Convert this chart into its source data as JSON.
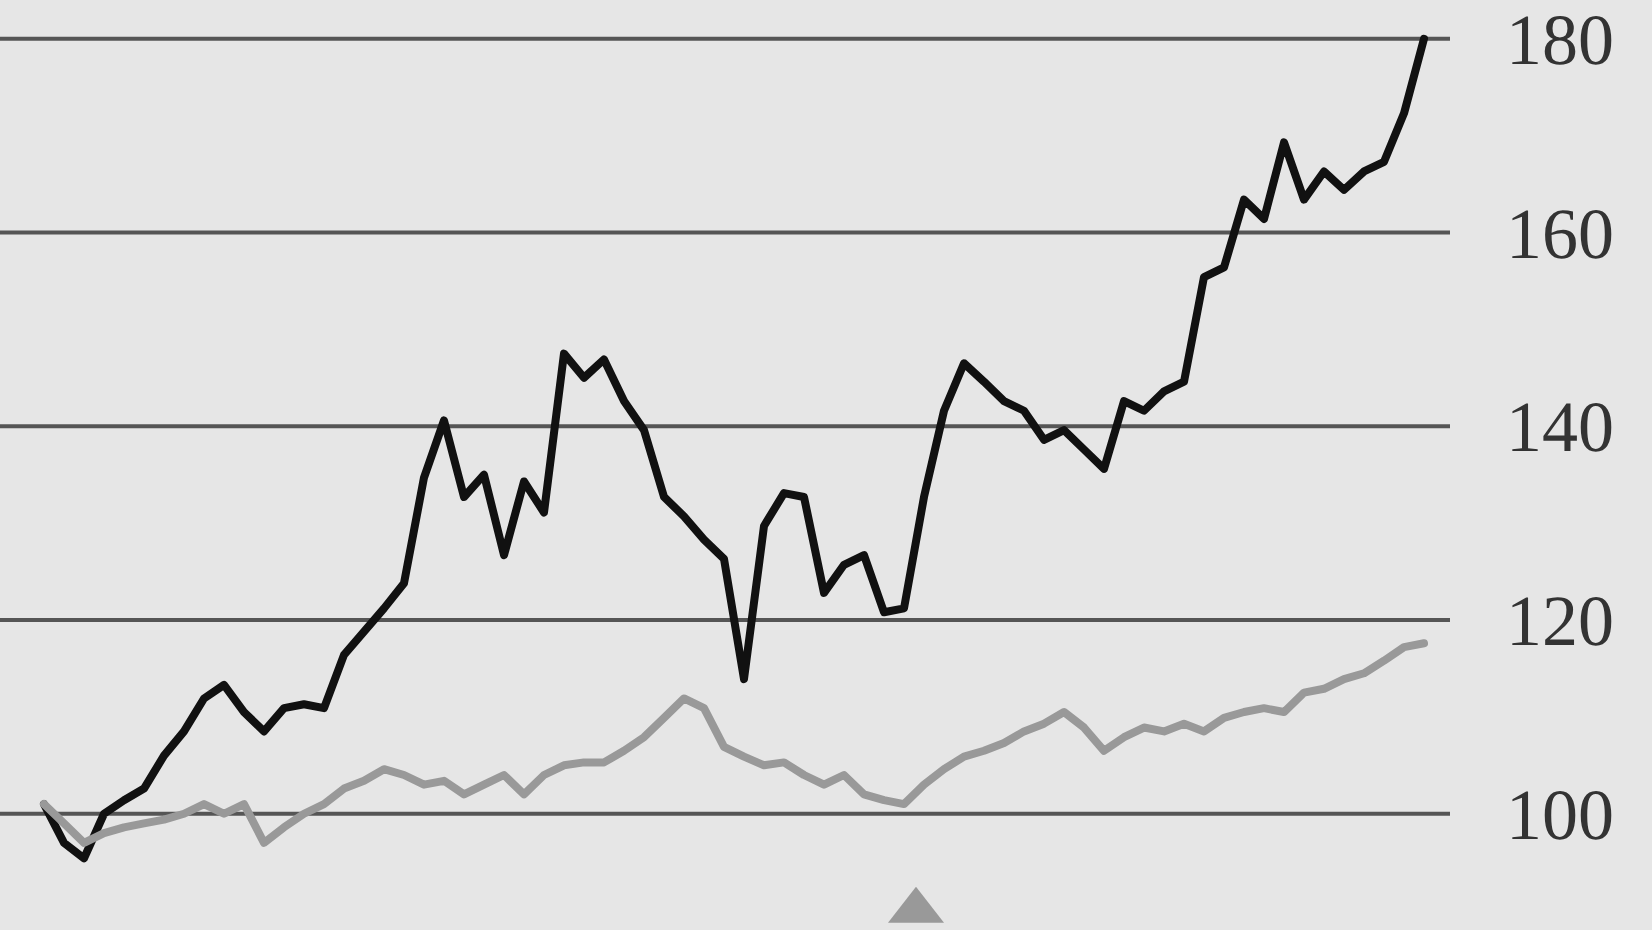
{
  "chart_data": {
    "type": "line",
    "categories": [
      null,
      null,
      null,
      null,
      null,
      null,
      null,
      null,
      null,
      null,
      null,
      null,
      null,
      null,
      null,
      null,
      null,
      null,
      null,
      null,
      null,
      null,
      null,
      null,
      null,
      null,
      null,
      null,
      null,
      null,
      null,
      null,
      null,
      null,
      null,
      null,
      null,
      null,
      null,
      null,
      null,
      null,
      null,
      null,
      null,
      null,
      null,
      null,
      null,
      null,
      null,
      null,
      null,
      null,
      null,
      null,
      null,
      null,
      null,
      null,
      null,
      null,
      null,
      null,
      null,
      null,
      null,
      null,
      null,
      null
    ],
    "series": [
      {
        "color": "#111111",
        "values": [
          101,
          97,
          95.4,
          100,
          101.4,
          102.6,
          106,
          108.5,
          111.9,
          113.3,
          110.5,
          108.5,
          110.9,
          111.3,
          110.9,
          116.4,
          118.8,
          121.2,
          123.8,
          134.7,
          140.6,
          132.7,
          135,
          126.7,
          134.3,
          131.1,
          147.5,
          145,
          146.9,
          142.6,
          139.6,
          132.7,
          130.7,
          128.3,
          126.3,
          113.9,
          129.7,
          133.1,
          132.7,
          122.8,
          125.7,
          126.7,
          120.8,
          121.2,
          132.7,
          141.6,
          146.5,
          144.6,
          142.6,
          141.6,
          138.6,
          139.6,
          137.6,
          135.6,
          142.6,
          141.6,
          143.6,
          144.6,
          155.4,
          156.4,
          163.4,
          161.4,
          169.3,
          163.4,
          166.3,
          164.4,
          166.3,
          167.3,
          172.3,
          180
        ]
      },
      {
        "color": "#999999",
        "values": [
          101,
          99,
          97,
          98,
          98.6,
          99,
          99.4,
          100,
          101,
          100,
          101,
          97,
          98.6,
          100,
          101,
          102.6,
          103.4,
          104.6,
          104,
          103,
          103.4,
          102,
          103,
          104,
          102,
          104,
          105,
          105.3,
          105.3,
          106.5,
          107.9,
          109.9,
          111.9,
          110.9,
          106.9,
          105.9,
          105,
          105.3,
          104,
          103,
          104,
          102,
          101.4,
          101,
          103,
          104.6,
          105.9,
          106.5,
          107.3,
          108.5,
          109.3,
          110.5,
          108.9,
          106.5,
          107.9,
          108.9,
          108.5,
          109.3,
          108.5,
          109.9,
          110.5,
          110.9,
          110.5,
          112.5,
          112.9,
          113.9,
          114.5,
          115.8,
          117.2,
          117.6
        ]
      }
    ],
    "ylim": [
      88,
      184
    ],
    "yticks": [
      100,
      120,
      140,
      160,
      180
    ],
    "grid": "y",
    "tick_labels": "y",
    "marker": "none",
    "line_style": "solid"
  }
}
